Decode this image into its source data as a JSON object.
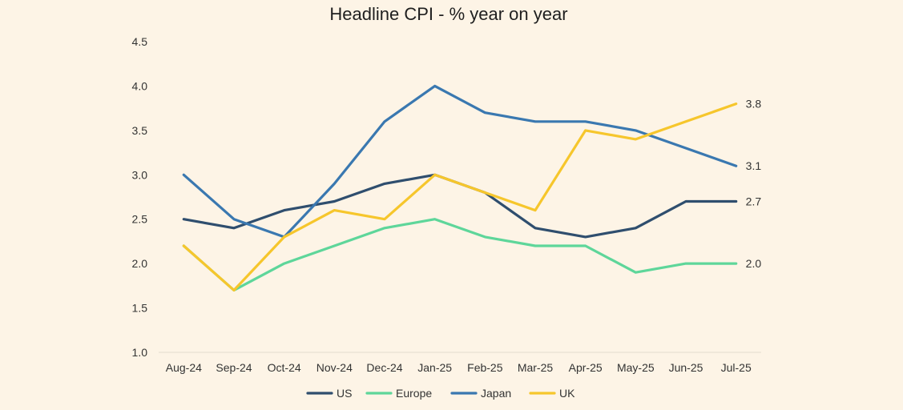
{
  "chart_data": {
    "type": "line",
    "title": "Headline CPI - % year on year",
    "xlabel": "",
    "ylabel": "",
    "ylim": [
      1.0,
      4.5
    ],
    "yticks": [
      "4.5",
      "4.0",
      "3.5",
      "3.0",
      "2.5",
      "2.0",
      "1.5",
      "1.0"
    ],
    "categories": [
      "Aug-24",
      "Sep-24",
      "Oct-24",
      "Nov-24",
      "Dec-24",
      "Jan-25",
      "Feb-25",
      "Mar-25",
      "Apr-25",
      "May-25",
      "Jun-25",
      "Jul-25"
    ],
    "grid": false,
    "legend_position": "bottom",
    "series": [
      {
        "name": "US",
        "color": "#2f4e6e",
        "values": [
          2.5,
          2.4,
          2.6,
          2.7,
          2.9,
          3.0,
          2.8,
          2.4,
          2.3,
          2.4,
          2.7,
          2.7
        ],
        "end_label": "2.7"
      },
      {
        "name": "Europe",
        "color": "#5ed69a",
        "values": [
          2.2,
          1.7,
          2.0,
          2.2,
          2.4,
          2.5,
          2.3,
          2.2,
          2.2,
          1.9,
          2.0,
          2.0
        ],
        "end_label": "2.0"
      },
      {
        "name": "Japan",
        "color": "#3a78b0",
        "values": [
          3.0,
          2.5,
          2.3,
          2.9,
          3.6,
          4.0,
          3.7,
          3.6,
          3.6,
          3.5,
          3.3,
          3.1
        ],
        "end_label": "3.1"
      },
      {
        "name": "UK",
        "color": "#f6c62c",
        "values": [
          2.2,
          1.7,
          2.3,
          2.6,
          2.5,
          3.0,
          2.8,
          2.6,
          3.5,
          3.4,
          3.6,
          3.8
        ],
        "end_label": "3.8"
      }
    ]
  }
}
